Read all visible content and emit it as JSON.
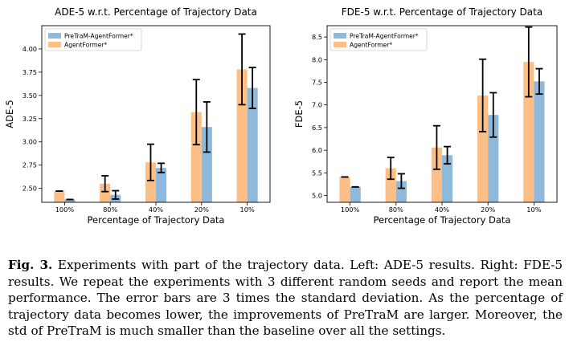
{
  "colors": {
    "agentformer": "#fdbf85",
    "pretram": "#8fb9db",
    "errorbar": "#000000"
  },
  "chart_data": [
    {
      "type": "bar",
      "title": "ADE-5 w.r.t. Percentage of Trajectory Data",
      "xlabel": "Percentage of Trajectory Data",
      "ylabel": "ADE-5",
      "categories": [
        "100%",
        "80%",
        "40%",
        "20%",
        "10%"
      ],
      "ylim": [
        2.35,
        4.25
      ],
      "yticks": [
        "2.50",
        "2.75",
        "3.00",
        "3.25",
        "3.50",
        "3.75",
        "4.00"
      ],
      "legend_position": "top-left",
      "series": [
        {
          "name": "PreTraM-AgentFormer*",
          "values": [
            2.38,
            2.43,
            2.72,
            3.16,
            3.58
          ],
          "err": [
            0.0,
            0.045,
            0.05,
            0.27,
            0.22
          ]
        },
        {
          "name": "AgentFormer*",
          "values": [
            2.47,
            2.55,
            2.78,
            3.32,
            3.78
          ],
          "err": [
            0.0,
            0.085,
            0.195,
            0.35,
            0.38
          ]
        }
      ]
    },
    {
      "type": "bar",
      "title": "FDE-5 w.r.t. Percentage of Trajectory Data",
      "xlabel": "Percentage of Trajectory Data",
      "ylabel": "FDE-5",
      "categories": [
        "100%",
        "80%",
        "40%",
        "20%",
        "10%"
      ],
      "ylim": [
        4.85,
        8.75
      ],
      "yticks": [
        "5.0",
        "5.5",
        "6.0",
        "6.5",
        "7.0",
        "7.5",
        "8.0",
        "8.5"
      ],
      "legend_position": "top-left",
      "series": [
        {
          "name": "PreTraM-AgentFormer*",
          "values": [
            5.19,
            5.32,
            5.89,
            6.78,
            7.52
          ],
          "err": [
            0.0,
            0.16,
            0.19,
            0.49,
            0.28
          ]
        },
        {
          "name": "AgentFormer*",
          "values": [
            5.41,
            5.6,
            6.06,
            7.21,
            7.95
          ],
          "err": [
            0.0,
            0.24,
            0.48,
            0.8,
            0.77
          ]
        }
      ]
    }
  ],
  "caption": {
    "label": "Fig. 3.",
    "text": " Experiments with part of the trajectory data. Left: ADE-5 results. Right: FDE-5 results. We repeat the experiments with 3 different random seeds and report the mean performance. The error bars are 3 times the standard deviation. As the percentage of trajectory data becomes lower, the improvements of PreTraM are larger. Moreover, the std of PreTraM is much smaller than the baseline over all the settings."
  }
}
